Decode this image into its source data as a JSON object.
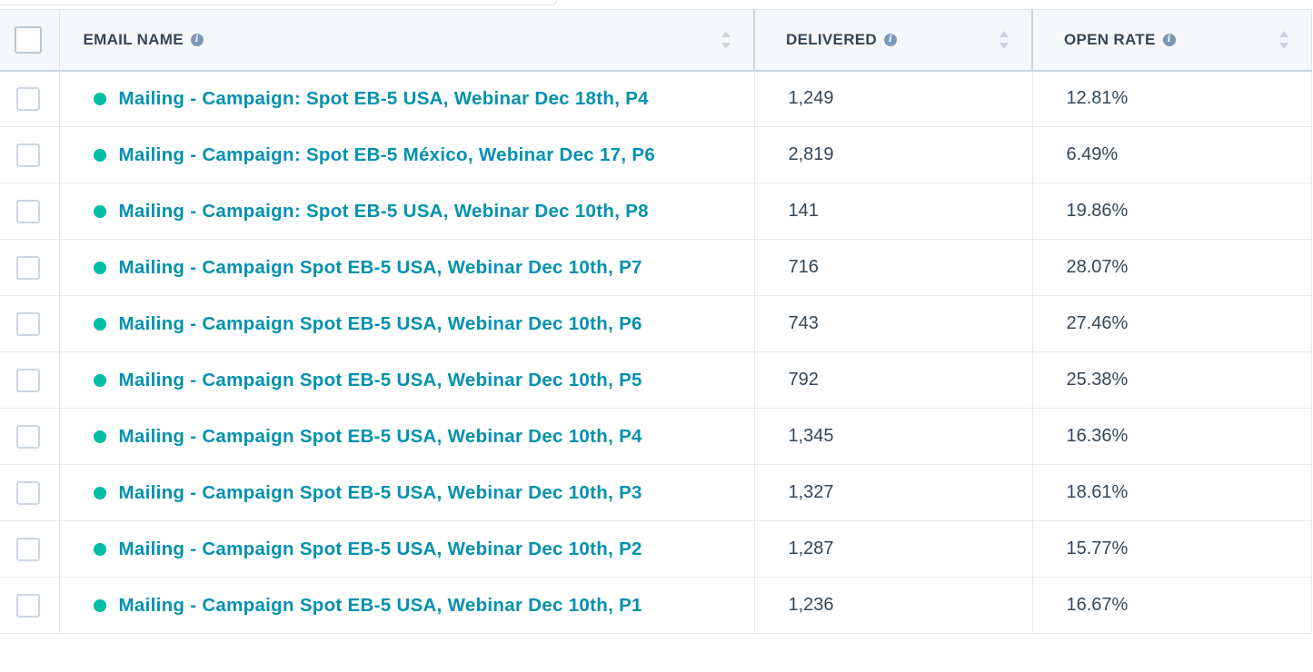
{
  "table": {
    "columns": {
      "name": "EMAIL NAME",
      "delivered": "DELIVERED",
      "open_rate": "OPEN RATE",
      "info_glyph": "i"
    },
    "status_color": "#00bda5",
    "link_color": "#0091ae",
    "rows": [
      {
        "name": "Mailing - Campaign: Spot EB-5 USA, Webinar Dec 18th, P4",
        "delivered": "1,249",
        "open_rate": "12.81%"
      },
      {
        "name": "Mailing - Campaign: Spot EB-5 México, Webinar Dec 17, P6",
        "delivered": "2,819",
        "open_rate": "6.49%"
      },
      {
        "name": "Mailing - Campaign: Spot EB-5 USA, Webinar Dec 10th, P8",
        "delivered": "141",
        "open_rate": "19.86%"
      },
      {
        "name": "Mailing - Campaign Spot EB-5 USA, Webinar Dec 10th, P7",
        "delivered": "716",
        "open_rate": "28.07%"
      },
      {
        "name": "Mailing - Campaign Spot EB-5 USA, Webinar Dec 10th, P6",
        "delivered": "743",
        "open_rate": "27.46%"
      },
      {
        "name": "Mailing - Campaign Spot EB-5 USA, Webinar Dec 10th, P5",
        "delivered": "792",
        "open_rate": "25.38%"
      },
      {
        "name": "Mailing - Campaign Spot EB-5 USA, Webinar Dec 10th, P4",
        "delivered": "1,345",
        "open_rate": "16.36%"
      },
      {
        "name": "Mailing - Campaign Spot EB-5 USA, Webinar Dec 10th, P3",
        "delivered": "1,327",
        "open_rate": "18.61%"
      },
      {
        "name": "Mailing - Campaign Spot EB-5 USA, Webinar Dec 10th, P2",
        "delivered": "1,287",
        "open_rate": "15.77%"
      },
      {
        "name": "Mailing - Campaign Spot EB-5 USA, Webinar Dec 10th, P1",
        "delivered": "1,236",
        "open_rate": "16.67%"
      }
    ]
  }
}
